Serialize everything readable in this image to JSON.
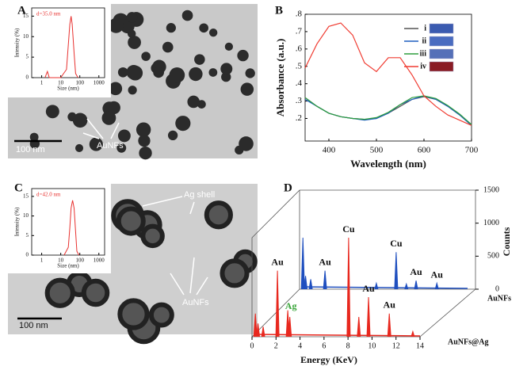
{
  "panels": [
    {
      "letter": "A",
      "scale_bar": "100 nm",
      "labels": [
        "AuNFs"
      ]
    },
    {
      "letter": "B"
    },
    {
      "letter": "C",
      "scale_bar": "100 nm",
      "labels": [
        "Ag shell",
        "AuNFs"
      ]
    },
    {
      "letter": "D"
    }
  ],
  "chart_data": [
    {
      "type": "line",
      "title": "d=35.0 nm",
      "xlabel": "Size (nm)",
      "ylabel": "Intensity (%)",
      "log_x": true,
      "x": [
        1.5,
        2,
        2.5,
        10,
        20,
        25,
        30,
        35,
        40,
        50,
        60,
        80
      ],
      "series": [
        {
          "color": "#e8312f",
          "values": [
            0,
            1.5,
            0,
            0,
            2,
            8,
            13,
            15,
            13,
            6,
            1,
            0
          ]
        }
      ],
      "xlim": [
        0.3,
        2000
      ],
      "xticks": [
        1,
        10,
        100,
        1000
      ],
      "ylim": [
        0,
        17
      ],
      "yticks": [
        0,
        5,
        10,
        15
      ]
    },
    {
      "type": "line",
      "xlabel": "Wavelength (nm)",
      "ylabel": "Absorbance (a.u.)",
      "x": [
        350,
        375,
        400,
        425,
        450,
        475,
        500,
        525,
        550,
        575,
        600,
        625,
        650,
        675,
        700
      ],
      "series": [
        {
          "name": "i",
          "color": "#555555",
          "vial": "#3b5bb0",
          "values": [
            0.32,
            0.27,
            0.23,
            0.21,
            0.2,
            0.195,
            0.2,
            0.23,
            0.27,
            0.31,
            0.325,
            0.31,
            0.27,
            0.22,
            0.16
          ]
        },
        {
          "name": "ii",
          "color": "#1f5fbf",
          "vial": "#4a6cc0",
          "values": [
            0.31,
            0.27,
            0.23,
            0.21,
            0.2,
            0.19,
            0.2,
            0.23,
            0.28,
            0.31,
            0.33,
            0.31,
            0.27,
            0.22,
            0.16
          ]
        },
        {
          "name": "iii",
          "color": "#2e9e3e",
          "vial": "#5570b8",
          "values": [
            0.32,
            0.27,
            0.23,
            0.21,
            0.2,
            0.195,
            0.205,
            0.235,
            0.28,
            0.32,
            0.33,
            0.315,
            0.275,
            0.225,
            0.165
          ]
        },
        {
          "name": "iv",
          "color": "#f03c32",
          "vial": "#8a1c24",
          "values": [
            0.49,
            0.63,
            0.73,
            0.75,
            0.68,
            0.52,
            0.47,
            0.55,
            0.55,
            0.45,
            0.33,
            0.27,
            0.22,
            0.19,
            0.16
          ]
        }
      ],
      "xlim": [
        350,
        700
      ],
      "xticks": [
        400,
        500,
        600,
        700
      ],
      "ylim": [
        0.07,
        0.8
      ],
      "yticks": [
        {
          "value": 0.2,
          "label": ".2"
        },
        {
          "value": 0.3,
          "label": ".3"
        },
        {
          "value": 0.4,
          "label": ".4"
        },
        {
          "value": 0.5,
          "label": ".5"
        },
        {
          "value": 0.6,
          "label": ".6"
        },
        {
          "value": 0.7,
          "label": ".7"
        },
        {
          "value": 0.8,
          "label": ".8"
        }
      ]
    },
    {
      "type": "line",
      "title": "d=42.0 nm",
      "xlabel": "Size (nm)",
      "ylabel": "Intensity (%)",
      "log_x": true,
      "x": [
        15,
        25,
        30,
        35,
        42,
        50,
        60,
        70,
        90
      ],
      "series": [
        {
          "color": "#e8312f",
          "values": [
            0,
            2,
            7,
            12,
            14,
            12,
            6,
            1,
            0
          ]
        }
      ],
      "xlim": [
        0.3,
        2000
      ],
      "xticks": [
        1,
        10,
        100,
        1000
      ],
      "ylim": [
        0,
        17
      ],
      "yticks": [
        0,
        5,
        10,
        15
      ]
    },
    {
      "type": "spectrum",
      "xlabel": "Energy (KeV)",
      "ylabel": "Counts",
      "xlim": [
        0,
        14
      ],
      "xticks": [
        0,
        2,
        4,
        6,
        8,
        10,
        12,
        14
      ],
      "ylim": [
        0,
        1500
      ],
      "yticks": [
        0,
        500,
        1000,
        1500
      ],
      "series": [
        {
          "name": "AuNFs",
          "color": "#1f4fbf",
          "x": [
            0.28,
            0.5,
            0.93,
            2.12,
            6.4,
            8.05,
            8.9,
            9.71,
            11.44
          ],
          "values": [
            780,
            200,
            150,
            280,
            90,
            560,
            80,
            130,
            90
          ],
          "annotations": [
            {
              "text": "Au",
              "x": 2.12
            },
            {
              "text": "Cu",
              "x": 8.05
            },
            {
              "text": "Au",
              "x": 9.71
            },
            {
              "text": "Au",
              "x": 11.44
            }
          ]
        },
        {
          "name": "AuNFs@Ag",
          "color": "#e8281f",
          "x": [
            0.28,
            0.5,
            0.93,
            2.12,
            2.98,
            3.15,
            8.05,
            8.9,
            9.71,
            11.44,
            13.4
          ],
          "values": [
            350,
            200,
            150,
            1000,
            400,
            300,
            1500,
            300,
            600,
            350,
            80
          ],
          "annotations": [
            {
              "text": "Au",
              "x": 2.12
            },
            {
              "text": "Ag",
              "x": 2.98,
              "color": "#3aa53a"
            },
            {
              "text": "Cu",
              "x": 8.05
            },
            {
              "text": "Au",
              "x": 9.71
            },
            {
              "text": "Au",
              "x": 11.44
            }
          ]
        }
      ]
    }
  ]
}
